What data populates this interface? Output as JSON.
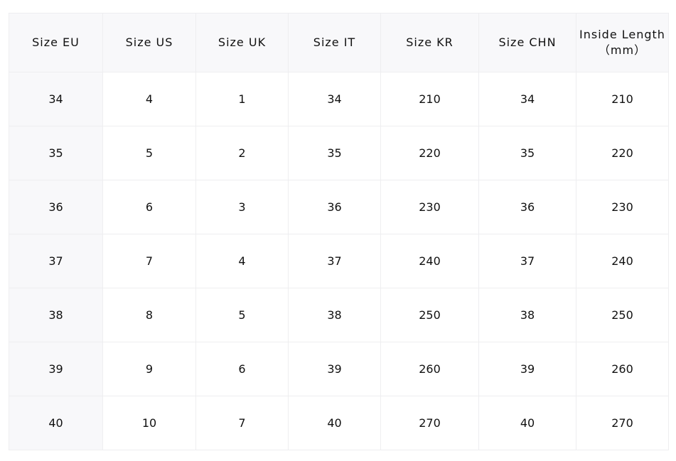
{
  "headers": [
    "Size EU",
    "Size US",
    "Size UK",
    "Size IT",
    "Size KR",
    "Size CHN",
    "Inside Length",
    "（mm）"
  ],
  "rows": [
    [
      "34",
      "4",
      "1",
      "34",
      "210",
      "34",
      "210"
    ],
    [
      "35",
      "5",
      "2",
      "35",
      "220",
      "35",
      "220"
    ],
    [
      "36",
      "6",
      "3",
      "36",
      "230",
      "36",
      "230"
    ],
    [
      "37",
      "7",
      "4",
      "37",
      "240",
      "37",
      "240"
    ],
    [
      "38",
      "8",
      "5",
      "38",
      "250",
      "38",
      "250"
    ],
    [
      "39",
      "9",
      "6",
      "39",
      "260",
      "39",
      "260"
    ],
    [
      "40",
      "10",
      "7",
      "40",
      "270",
      "40",
      "270"
    ]
  ]
}
